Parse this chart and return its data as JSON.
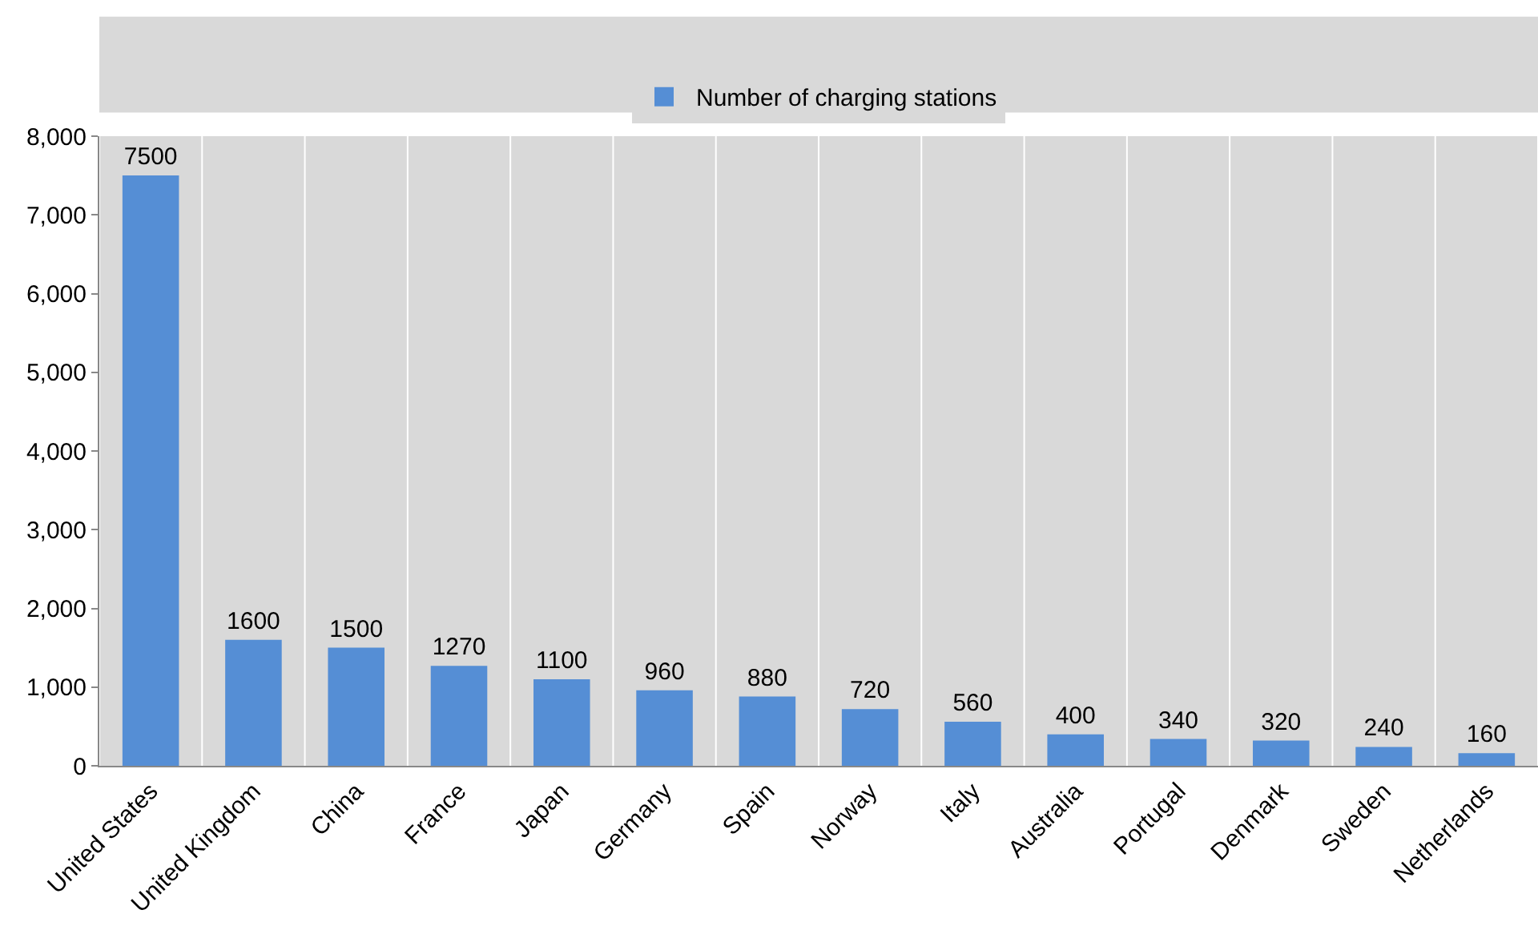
{
  "chart_data": {
    "type": "bar",
    "categories": [
      "United States",
      "United Kingdom",
      "China",
      "France",
      "Japan",
      "Germany",
      "Spain",
      "Norway",
      "Italy",
      "Australia",
      "Portugal",
      "Denmark",
      "Sweden",
      "Netherlands"
    ],
    "series": [
      {
        "name": "Number of charging stations",
        "color": "#558ed5",
        "values": [
          7500,
          1600,
          1500,
          1270,
          1100,
          960,
          880,
          720,
          560,
          400,
          340,
          320,
          240,
          160
        ]
      }
    ],
    "ylim": [
      0,
      8000
    ],
    "yticks": [
      {
        "value": 0,
        "label": "0"
      },
      {
        "value": 1000,
        "label": "1,000"
      },
      {
        "value": 2000,
        "label": "2,000"
      },
      {
        "value": 3000,
        "label": "3,000"
      },
      {
        "value": 4000,
        "label": "4,000"
      },
      {
        "value": 5000,
        "label": "5,000"
      },
      {
        "value": 6000,
        "label": "6,000"
      },
      {
        "value": 7000,
        "label": "7,000"
      },
      {
        "value": 8000,
        "label": "8,000"
      }
    ],
    "grid": "x",
    "legend": "top",
    "data_labels": true
  }
}
